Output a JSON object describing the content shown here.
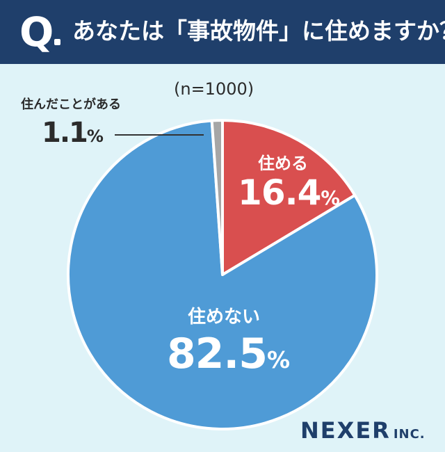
{
  "header": {
    "question_mark": "Q",
    "question": "あなたは「事故物件」に住めますか？"
  },
  "sample_size": "(n=1000)",
  "chart_data": {
    "type": "pie",
    "title": "あなたは「事故物件」に住めますか？",
    "slices": [
      {
        "label": "住める",
        "value": 16.4,
        "display": "16.4",
        "color": "#d94f4f"
      },
      {
        "label": "住めない",
        "value": 82.5,
        "display": "82.5",
        "color": "#4f9bd6"
      },
      {
        "label": "住んだことがある",
        "value": 1.1,
        "display": "1.1",
        "color": "#a6a6a6"
      }
    ],
    "unit": "%"
  },
  "brand": {
    "name": "NEXER",
    "suffix": "INC."
  }
}
